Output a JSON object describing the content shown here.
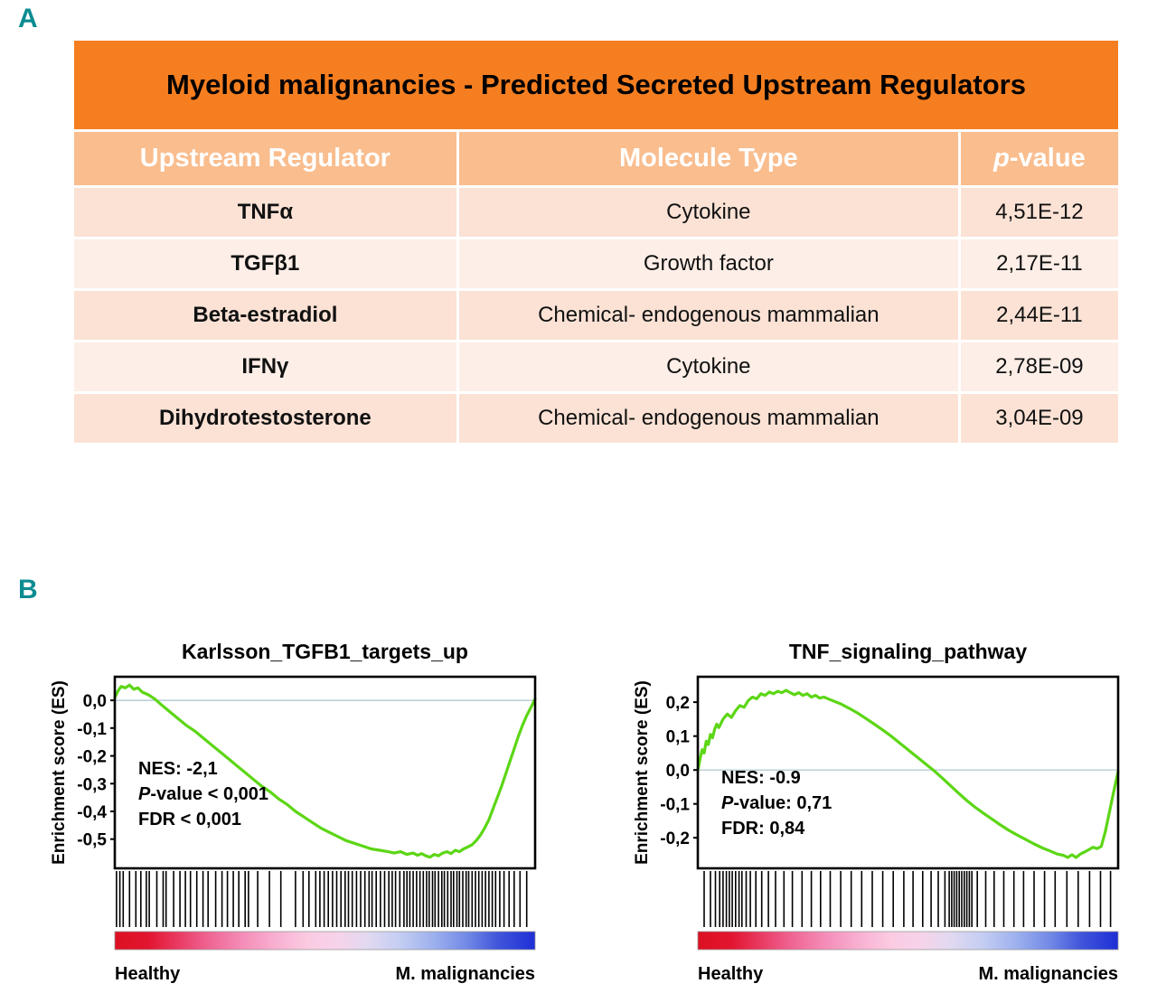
{
  "colors": {
    "panel_label": "#0d8c92",
    "title_bar": "#f57e20",
    "header_row": "#f9bd8e",
    "row_odd": "#fbe2d5",
    "row_even": "#fdeee7",
    "curve_green": "#5cd615",
    "zero_line": "#a8c2cc",
    "gradient_stops": [
      {
        "o": 0,
        "c": "#dc1021"
      },
      {
        "o": 8,
        "c": "#e21530"
      },
      {
        "o": 15,
        "c": "#e93a62"
      },
      {
        "o": 22,
        "c": "#ef6391"
      },
      {
        "o": 30,
        "c": "#f48bb6"
      },
      {
        "o": 38,
        "c": "#f8afd0"
      },
      {
        "o": 46,
        "c": "#fbcbe2"
      },
      {
        "o": 53,
        "c": "#f6d3e9"
      },
      {
        "o": 60,
        "c": "#e2d9f1"
      },
      {
        "o": 68,
        "c": "#c3cdf2"
      },
      {
        "o": 76,
        "c": "#9cb0ee"
      },
      {
        "o": 84,
        "c": "#7188e6"
      },
      {
        "o": 91,
        "c": "#4156db"
      },
      {
        "o": 100,
        "c": "#1e2fd6"
      }
    ]
  },
  "panelA": {
    "label": "A",
    "table": {
      "title": "Myeloid malignancies - Predicted Secreted Upstream Regulators",
      "columns": [
        [
          {
            "t": "Upstream Regulator"
          }
        ],
        [
          {
            "t": "Molecule Type"
          }
        ],
        [
          {
            "t": "p",
            "i": true
          },
          {
            "t": "-value"
          }
        ]
      ],
      "rows": [
        [
          "TNFα",
          "Cytokine",
          "4,51E-12"
        ],
        [
          "TGFβ1",
          "Growth factor",
          "2,17E-11"
        ],
        [
          "Beta-estradiol",
          "Chemical- endogenous mammalian",
          "2,44E-11"
        ],
        [
          "IFNγ",
          "Cytokine",
          "2,78E-09"
        ],
        [
          "Dihydrotestosterone",
          "Chemical- endogenous mammalian",
          "3,04E-09"
        ]
      ]
    }
  },
  "panelB": {
    "label": "B"
  },
  "chart_data": [
    {
      "type": "line",
      "subtype": "gsea-enrichment",
      "title": "Karlsson_TGFB1_targets_up",
      "ylabel": "Enrichment score (ES)",
      "ylim": [
        -0.605,
        0.085
      ],
      "grid": false,
      "yticks": [
        {
          "label": "0,0",
          "v": 0.0
        },
        {
          "label": "-0,1",
          "v": -0.1
        },
        {
          "label": "-0,2",
          "v": -0.2
        },
        {
          "label": "-0,3",
          "v": -0.3
        },
        {
          "label": "-0,4",
          "v": -0.4
        },
        {
          "label": "-0,5",
          "v": -0.5
        }
      ],
      "annotation": [
        [
          {
            "t": "NES: -2,1"
          }
        ],
        [
          {
            "t": "P",
            "i": true
          },
          {
            "t": "-value < 0,001"
          }
        ],
        [
          {
            "t": "FDR < 0,001"
          }
        ]
      ],
      "x_axis_labels": {
        "left": "Healthy",
        "right": "M. malignancies"
      },
      "curve": [
        [
          0.0,
          0.01
        ],
        [
          0.008,
          0.035
        ],
        [
          0.015,
          0.05
        ],
        [
          0.025,
          0.045
        ],
        [
          0.035,
          0.055
        ],
        [
          0.045,
          0.04
        ],
        [
          0.055,
          0.045
        ],
        [
          0.065,
          0.03
        ],
        [
          0.08,
          0.02
        ],
        [
          0.095,
          0.005
        ],
        [
          0.11,
          -0.015
        ],
        [
          0.13,
          -0.04
        ],
        [
          0.15,
          -0.065
        ],
        [
          0.17,
          -0.09
        ],
        [
          0.19,
          -0.11
        ],
        [
          0.21,
          -0.135
        ],
        [
          0.23,
          -0.16
        ],
        [
          0.25,
          -0.185
        ],
        [
          0.27,
          -0.21
        ],
        [
          0.29,
          -0.235
        ],
        [
          0.31,
          -0.26
        ],
        [
          0.33,
          -0.285
        ],
        [
          0.35,
          -0.31
        ],
        [
          0.37,
          -0.33
        ],
        [
          0.39,
          -0.355
        ],
        [
          0.41,
          -0.375
        ],
        [
          0.43,
          -0.4
        ],
        [
          0.45,
          -0.42
        ],
        [
          0.47,
          -0.44
        ],
        [
          0.49,
          -0.46
        ],
        [
          0.51,
          -0.475
        ],
        [
          0.53,
          -0.49
        ],
        [
          0.55,
          -0.505
        ],
        [
          0.57,
          -0.515
        ],
        [
          0.59,
          -0.525
        ],
        [
          0.61,
          -0.535
        ],
        [
          0.63,
          -0.54
        ],
        [
          0.65,
          -0.545
        ],
        [
          0.665,
          -0.55
        ],
        [
          0.68,
          -0.545
        ],
        [
          0.695,
          -0.555
        ],
        [
          0.71,
          -0.55
        ],
        [
          0.72,
          -0.558
        ],
        [
          0.73,
          -0.552
        ],
        [
          0.74,
          -0.56
        ],
        [
          0.75,
          -0.565
        ],
        [
          0.76,
          -0.555
        ],
        [
          0.77,
          -0.56
        ],
        [
          0.78,
          -0.55
        ],
        [
          0.79,
          -0.545
        ],
        [
          0.8,
          -0.552
        ],
        [
          0.81,
          -0.54
        ],
        [
          0.82,
          -0.545
        ],
        [
          0.83,
          -0.535
        ],
        [
          0.84,
          -0.528
        ],
        [
          0.85,
          -0.52
        ],
        [
          0.86,
          -0.505
        ],
        [
          0.87,
          -0.485
        ],
        [
          0.88,
          -0.46
        ],
        [
          0.89,
          -0.43
        ],
        [
          0.9,
          -0.39
        ],
        [
          0.91,
          -0.35
        ],
        [
          0.92,
          -0.31
        ],
        [
          0.93,
          -0.265
        ],
        [
          0.94,
          -0.22
        ],
        [
          0.95,
          -0.175
        ],
        [
          0.96,
          -0.13
        ],
        [
          0.97,
          -0.09
        ],
        [
          0.98,
          -0.055
        ],
        [
          0.99,
          -0.025
        ],
        [
          1.0,
          0.005
        ]
      ],
      "hits": [
        0.004,
        0.012,
        0.02,
        0.035,
        0.05,
        0.062,
        0.075,
        0.082,
        0.1,
        0.115,
        0.122,
        0.14,
        0.155,
        0.168,
        0.18,
        0.195,
        0.21,
        0.222,
        0.24,
        0.255,
        0.268,
        0.282,
        0.295,
        0.31,
        0.318,
        0.34,
        0.368,
        0.395,
        0.43,
        0.448,
        0.462,
        0.478,
        0.488,
        0.498,
        0.508,
        0.518,
        0.528,
        0.538,
        0.548,
        0.556,
        0.565,
        0.575,
        0.585,
        0.595,
        0.605,
        0.612,
        0.622,
        0.632,
        0.642,
        0.652,
        0.66,
        0.668,
        0.678,
        0.688,
        0.695,
        0.702,
        0.71,
        0.718,
        0.726,
        0.734,
        0.742,
        0.748,
        0.756,
        0.762,
        0.77,
        0.778,
        0.784,
        0.792,
        0.8,
        0.806,
        0.814,
        0.82,
        0.828,
        0.836,
        0.842,
        0.85,
        0.858,
        0.866,
        0.874,
        0.882,
        0.89,
        0.898,
        0.906,
        0.916,
        0.926,
        0.938,
        0.95,
        0.964,
        0.98
      ]
    },
    {
      "type": "line",
      "subtype": "gsea-enrichment",
      "title": "TNF_signaling_pathway",
      "ylabel": "Enrichment score (ES)",
      "ylim": [
        -0.29,
        0.275
      ],
      "grid": false,
      "yticks": [
        {
          "label": "0,2",
          "v": 0.2
        },
        {
          "label": "0,1",
          "v": 0.1
        },
        {
          "label": "0,0",
          "v": 0.0
        },
        {
          "label": "-0,1",
          "v": -0.1
        },
        {
          "label": "-0,2",
          "v": -0.2
        }
      ],
      "annotation": [
        [
          {
            "t": "NES: -0.9"
          }
        ],
        [
          {
            "t": "P",
            "i": true
          },
          {
            "t": "-value: 0,71"
          }
        ],
        [
          {
            "t": "FDR: 0,84"
          }
        ]
      ],
      "x_axis_labels": {
        "left": "Healthy",
        "right": "M. malignancies"
      },
      "curve": [
        [
          0.0,
          0.0
        ],
        [
          0.005,
          0.03
        ],
        [
          0.01,
          0.06
        ],
        [
          0.015,
          0.05
        ],
        [
          0.02,
          0.085
        ],
        [
          0.025,
          0.075
        ],
        [
          0.03,
          0.105
        ],
        [
          0.035,
          0.095
        ],
        [
          0.04,
          0.12
        ],
        [
          0.045,
          0.135
        ],
        [
          0.05,
          0.125
        ],
        [
          0.06,
          0.15
        ],
        [
          0.07,
          0.165
        ],
        [
          0.08,
          0.155
        ],
        [
          0.09,
          0.175
        ],
        [
          0.1,
          0.19
        ],
        [
          0.11,
          0.185
        ],
        [
          0.12,
          0.205
        ],
        [
          0.13,
          0.215
        ],
        [
          0.14,
          0.21
        ],
        [
          0.15,
          0.225
        ],
        [
          0.16,
          0.22
        ],
        [
          0.17,
          0.23
        ],
        [
          0.18,
          0.225
        ],
        [
          0.19,
          0.232
        ],
        [
          0.2,
          0.228
        ],
        [
          0.21,
          0.235
        ],
        [
          0.22,
          0.228
        ],
        [
          0.23,
          0.222
        ],
        [
          0.24,
          0.228
        ],
        [
          0.25,
          0.22
        ],
        [
          0.26,
          0.225
        ],
        [
          0.27,
          0.215
        ],
        [
          0.28,
          0.22
        ],
        [
          0.29,
          0.212
        ],
        [
          0.3,
          0.215
        ],
        [
          0.32,
          0.205
        ],
        [
          0.34,
          0.195
        ],
        [
          0.36,
          0.182
        ],
        [
          0.38,
          0.168
        ],
        [
          0.4,
          0.152
        ],
        [
          0.42,
          0.135
        ],
        [
          0.44,
          0.118
        ],
        [
          0.46,
          0.1
        ],
        [
          0.48,
          0.08
        ],
        [
          0.5,
          0.06
        ],
        [
          0.52,
          0.04
        ],
        [
          0.54,
          0.02
        ],
        [
          0.56,
          0.0
        ],
        [
          0.58,
          -0.022
        ],
        [
          0.6,
          -0.045
        ],
        [
          0.62,
          -0.068
        ],
        [
          0.64,
          -0.09
        ],
        [
          0.66,
          -0.11
        ],
        [
          0.68,
          -0.128
        ],
        [
          0.7,
          -0.145
        ],
        [
          0.72,
          -0.162
        ],
        [
          0.74,
          -0.178
        ],
        [
          0.76,
          -0.192
        ],
        [
          0.78,
          -0.205
        ],
        [
          0.8,
          -0.218
        ],
        [
          0.82,
          -0.23
        ],
        [
          0.84,
          -0.24
        ],
        [
          0.855,
          -0.248
        ],
        [
          0.87,
          -0.252
        ],
        [
          0.88,
          -0.258
        ],
        [
          0.89,
          -0.25
        ],
        [
          0.9,
          -0.258
        ],
        [
          0.91,
          -0.248
        ],
        [
          0.92,
          -0.242
        ],
        [
          0.93,
          -0.235
        ],
        [
          0.94,
          -0.228
        ],
        [
          0.95,
          -0.232
        ],
        [
          0.96,
          -0.225
        ],
        [
          0.97,
          -0.18
        ],
        [
          0.98,
          -0.12
        ],
        [
          0.99,
          -0.06
        ],
        [
          1.0,
          -0.005
        ]
      ],
      "hits": [
        0.015,
        0.03,
        0.042,
        0.052,
        0.06,
        0.068,
        0.075,
        0.082,
        0.09,
        0.098,
        0.105,
        0.115,
        0.125,
        0.138,
        0.152,
        0.168,
        0.185,
        0.205,
        0.225,
        0.248,
        0.27,
        0.292,
        0.315,
        0.34,
        0.365,
        0.39,
        0.415,
        0.44,
        0.465,
        0.49,
        0.512,
        0.535,
        0.555,
        0.572,
        0.588,
        0.598,
        0.604,
        0.61,
        0.616,
        0.622,
        0.628,
        0.634,
        0.64,
        0.646,
        0.652,
        0.665,
        0.685,
        0.705,
        0.728,
        0.752,
        0.775,
        0.8,
        0.825,
        0.85,
        0.878,
        0.905,
        0.932,
        0.958,
        0.982
      ]
    }
  ]
}
